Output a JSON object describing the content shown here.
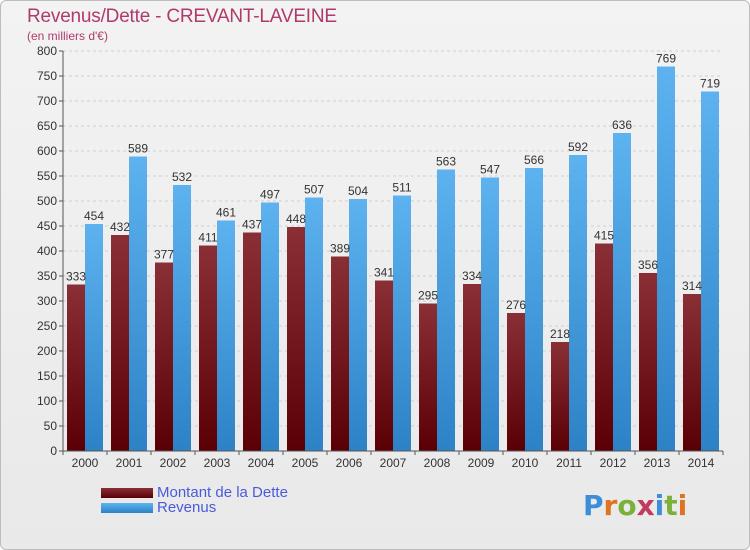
{
  "title": "Revenus/Dette - CREVANT-LAVEINE",
  "subtitle": "(en milliers d'€)",
  "logo_text": "Proxiti",
  "chart_data": {
    "type": "bar",
    "categories": [
      "2000",
      "2001",
      "2002",
      "2003",
      "2004",
      "2005",
      "2006",
      "2007",
      "2008",
      "2009",
      "2010",
      "2011",
      "2012",
      "2013",
      "2014"
    ],
    "series": [
      {
        "name": "Montant de la Dette",
        "values": [
          333,
          432,
          377,
          411,
          437,
          448,
          389,
          341,
          295,
          334,
          276,
          218,
          415,
          356,
          314
        ],
        "color": "#6b1a1e"
      },
      {
        "name": "Revenus",
        "values": [
          454,
          589,
          532,
          461,
          497,
          507,
          504,
          511,
          563,
          547,
          566,
          592,
          636,
          769,
          719
        ],
        "color": "#3b96dc"
      }
    ],
    "ylim": [
      0,
      800
    ],
    "yticks": [
      0,
      50,
      100,
      150,
      200,
      250,
      300,
      350,
      400,
      450,
      500,
      550,
      600,
      650,
      700,
      750,
      800
    ],
    "grid": true,
    "legend_position": "bottom-left"
  }
}
